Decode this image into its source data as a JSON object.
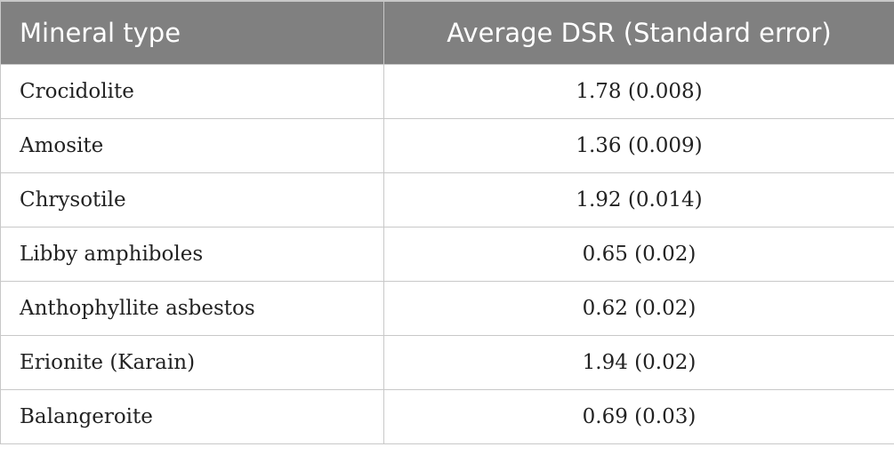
{
  "table": {
    "headers": [
      "Mineral type",
      "Average DSR (Standard error)"
    ],
    "rows": [
      {
        "mineral": "Crocidolite",
        "dsr": "1.78 (0.008)"
      },
      {
        "mineral": "Amosite",
        "dsr": "1.36 (0.009)"
      },
      {
        "mineral": "Chrysotile",
        "dsr": "1.92 (0.014)"
      },
      {
        "mineral": "Libby amphiboles",
        "dsr": "0.65 (0.02)"
      },
      {
        "mineral": "Anthophyllite asbestos",
        "dsr": "0.62 (0.02)"
      },
      {
        "mineral": "Erionite (Karain)",
        "dsr": "1.94 (0.02)"
      },
      {
        "mineral": "Balangeroite",
        "dsr": "0.69 (0.03)"
      }
    ]
  },
  "colors": {
    "header_bg": "#808080",
    "header_text": "#ffffff",
    "grid": "#c8c8c8",
    "body_text": "#222222"
  }
}
